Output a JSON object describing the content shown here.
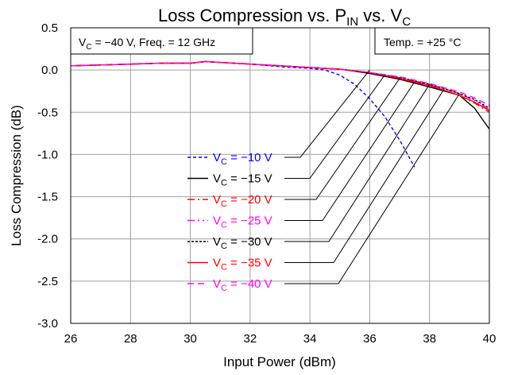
{
  "chart_data": {
    "type": "line",
    "title": {
      "main": "Loss Compression vs. P",
      "sub_in": "IN",
      "mid": " vs. V",
      "sub_c": "C"
    },
    "xlabel": "Input Power (dBm)",
    "ylabel": "Loss Compression (dB)",
    "xlim": [
      26,
      40
    ],
    "ylim": [
      -3.0,
      0.5
    ],
    "xticks": [
      26,
      28,
      30,
      32,
      34,
      36,
      38,
      40
    ],
    "xtick_labels": [
      "26",
      "28",
      "30",
      "32",
      "34",
      "36",
      "38",
      "40"
    ],
    "yticks": [
      0.5,
      0.0,
      -0.5,
      -1.0,
      -1.5,
      -2.0,
      -2.5,
      -3.0
    ],
    "ytick_labels": [
      "0.5",
      "0.0",
      "-0.5",
      "-1.0",
      "-1.5",
      "-2.0",
      "-2.5",
      "-3.0"
    ],
    "grid": true,
    "legend_position": "lower-center",
    "annotations": {
      "conditions_prefix": "V",
      "conditions_sub": "C",
      "conditions_rest": " = −40 V, Freq. = 12 GHz",
      "temp": "Temp. = +25 °C"
    },
    "series": [
      {
        "name": "V_C = −10 V",
        "label_v": "V",
        "label_sub": "C",
        "label_rest": " = −10 V",
        "color": "#0000ff",
        "dash": "4,3",
        "x": [
          26,
          27,
          28,
          29,
          30,
          30.5,
          31,
          32,
          33,
          34,
          34.5,
          35,
          35.5,
          36,
          36.5,
          37,
          37.5
        ],
        "y": [
          0.05,
          0.06,
          0.07,
          0.08,
          0.08,
          0.1,
          0.09,
          0.07,
          0.04,
          0.02,
          0.0,
          -0.06,
          -0.17,
          -0.34,
          -0.55,
          -0.83,
          -1.15
        ]
      },
      {
        "name": "V_C = −15 V",
        "label_v": "V",
        "label_sub": "C",
        "label_rest": " = −15 V",
        "color": "#000000",
        "dash": "",
        "x": [
          26,
          27,
          28,
          29,
          30,
          30.5,
          31,
          32,
          33,
          34,
          35,
          36,
          37,
          38,
          38.5,
          39,
          39.5,
          40
        ],
        "y": [
          0.05,
          0.06,
          0.07,
          0.08,
          0.08,
          0.1,
          0.09,
          0.07,
          0.05,
          0.03,
          0.01,
          -0.04,
          -0.11,
          -0.2,
          -0.25,
          -0.3,
          -0.45,
          -0.7
        ]
      },
      {
        "name": "V_C = −20 V",
        "label_v": "V",
        "label_sub": "C",
        "label_rest": " = −20 V",
        "color": "#ff0000",
        "dash": "9,4,2,4",
        "x": [
          26,
          27,
          28,
          29,
          30,
          30.5,
          31,
          32,
          33,
          34,
          35,
          36,
          37,
          38,
          38.5,
          39,
          39.5,
          40
        ],
        "y": [
          0.05,
          0.06,
          0.07,
          0.08,
          0.08,
          0.1,
          0.09,
          0.07,
          0.05,
          0.03,
          0.01,
          -0.03,
          -0.1,
          -0.19,
          -0.24,
          -0.3,
          -0.39,
          -0.5
        ]
      },
      {
        "name": "V_C = −25 V",
        "label_v": "V",
        "label_sub": "C",
        "label_rest": " = −25 V",
        "color": "#ff00ff",
        "dash": "9,4,2,4,2,4",
        "x": [
          26,
          27,
          28,
          29,
          30,
          30.5,
          31,
          32,
          33,
          34,
          35,
          36,
          37,
          38,
          38.5,
          39,
          39.5,
          40
        ],
        "y": [
          0.05,
          0.06,
          0.07,
          0.08,
          0.08,
          0.1,
          0.09,
          0.07,
          0.05,
          0.03,
          0.01,
          -0.03,
          -0.09,
          -0.17,
          -0.22,
          -0.28,
          -0.36,
          -0.47
        ]
      },
      {
        "name": "V_C = −30 V",
        "label_v": "V",
        "label_sub": "C",
        "label_rest": " = −30 V",
        "color": "#000000",
        "dash": "3,2",
        "x": [
          26,
          27,
          28,
          29,
          30,
          30.5,
          31,
          32,
          33,
          34,
          35,
          36,
          37,
          38,
          38.5,
          39,
          39.5,
          40
        ],
        "y": [
          0.05,
          0.06,
          0.07,
          0.08,
          0.08,
          0.1,
          0.09,
          0.07,
          0.05,
          0.03,
          0.01,
          -0.03,
          -0.09,
          -0.17,
          -0.22,
          -0.28,
          -0.35,
          -0.45
        ]
      },
      {
        "name": "V_C = −35 V",
        "label_v": "V",
        "label_sub": "C",
        "label_rest": " = −35 V",
        "color": "#ff0000",
        "dash": "",
        "x": [
          26,
          27,
          28,
          29,
          30,
          30.5,
          31,
          32,
          33,
          34,
          35,
          36,
          37,
          38,
          38.5,
          39,
          39.5,
          40
        ],
        "y": [
          0.05,
          0.06,
          0.07,
          0.08,
          0.08,
          0.1,
          0.09,
          0.07,
          0.05,
          0.03,
          0.01,
          -0.03,
          -0.1,
          -0.18,
          -0.24,
          -0.3,
          -0.38,
          -0.48
        ]
      },
      {
        "name": "V_C = −40 V",
        "label_v": "V",
        "label_sub": "C",
        "label_rest": " = −40 V",
        "color": "#ff00ff",
        "dash": "8,5",
        "x": [
          26,
          27,
          28,
          29,
          30,
          30.5,
          31,
          32,
          33,
          34,
          35,
          36,
          37,
          38,
          38.5,
          39,
          39.5,
          40
        ],
        "y": [
          0.05,
          0.06,
          0.07,
          0.08,
          0.08,
          0.1,
          0.09,
          0.07,
          0.05,
          0.03,
          0.01,
          -0.03,
          -0.08,
          -0.16,
          -0.21,
          -0.26,
          -0.33,
          -0.42
        ]
      }
    ],
    "leader_targets": [
      {
        "x": 36.0,
        "y": -0.0
      },
      {
        "x": 36.5,
        "y": -0.06
      },
      {
        "x": 37.0,
        "y": -0.1
      },
      {
        "x": 37.5,
        "y": -0.14
      },
      {
        "x": 38.0,
        "y": -0.17
      },
      {
        "x": 38.5,
        "y": -0.22
      },
      {
        "x": 39.0,
        "y": -0.28
      }
    ]
  }
}
